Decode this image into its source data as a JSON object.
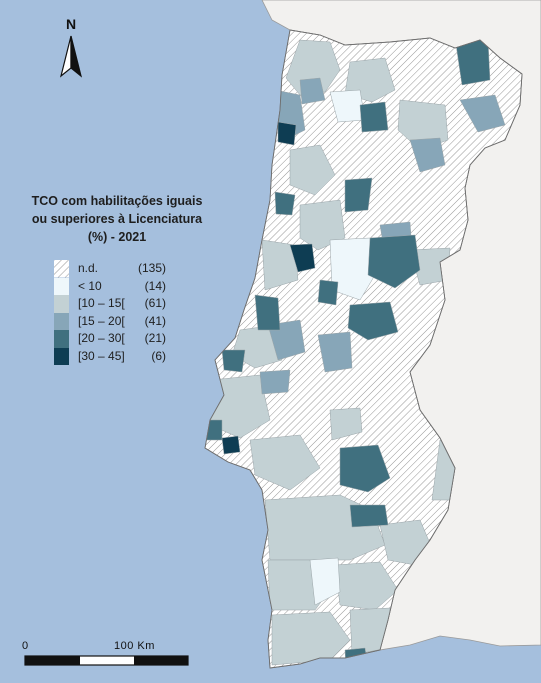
{
  "legend": {
    "title_lines": [
      "TCO com habilitações iguais",
      "ou superiores à Licenciatura",
      "(%) - 2021"
    ],
    "classes": [
      {
        "label": "n.d.",
        "count": "(135)",
        "color": "hatch"
      },
      {
        "label": "< 10",
        "count": "(14)",
        "color": "#eef7fb"
      },
      {
        "label": "[10 – 15[",
        "count": "(61)",
        "color": "#c3d1d4"
      },
      {
        "label": "[15 – 20[",
        "count": "(41)",
        "color": "#87a6b8"
      },
      {
        "label": "[20 – 30[",
        "count": "(21)",
        "color": "#40707f"
      },
      {
        "label": "[30 – 45]",
        "count": "(6)",
        "color": "#0e3d53"
      }
    ]
  },
  "north_arrow": {
    "letter": "N"
  },
  "scale_bar": {
    "start_label": "0",
    "end_label": "100 Km"
  },
  "colors": {
    "sea": "#a5bfdd",
    "spain": "#f2f1ef",
    "border": "#888888"
  }
}
